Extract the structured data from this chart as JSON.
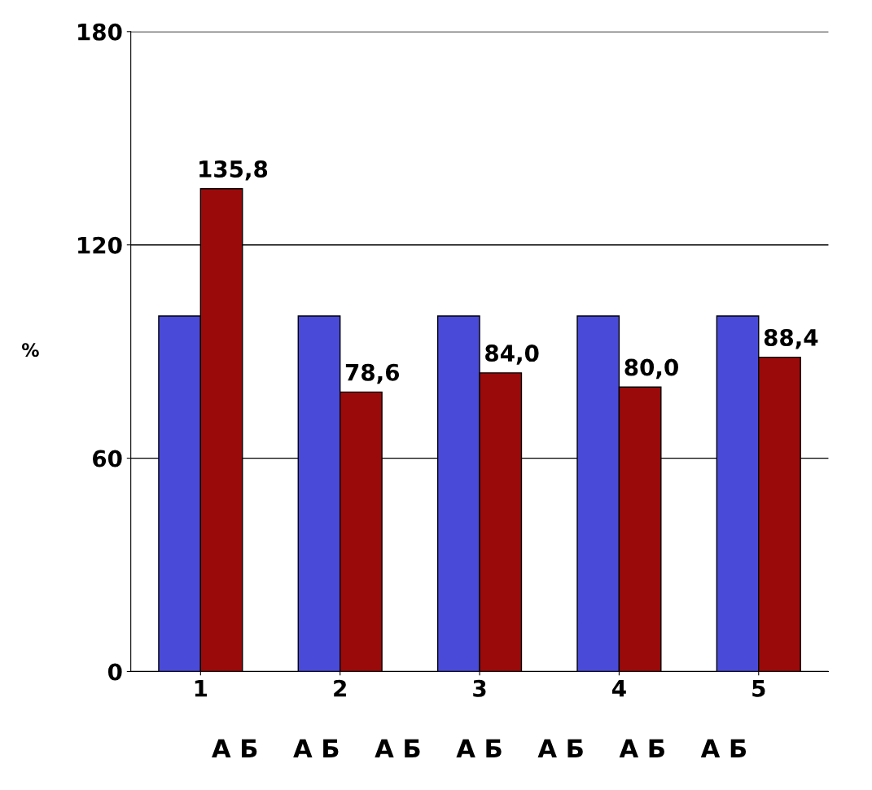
{
  "chart_data": {
    "type": "bar",
    "categories": [
      "1",
      "2",
      "3",
      "4",
      "5"
    ],
    "ylabel": "%",
    "ylim": [
      0,
      180
    ],
    "yticks": [
      0,
      60,
      120,
      180
    ],
    "grid": "y",
    "series": [
      {
        "color": "#4a4ad8",
        "values": [
          100,
          100,
          100,
          100,
          100
        ]
      },
      {
        "color": "#9a0a0a",
        "values": [
          135.8,
          78.6,
          84.0,
          80.0,
          88.4
        ],
        "value_labels": [
          "135,8",
          "78,6",
          "84,0",
          "80,0",
          "88,4"
        ]
      }
    ],
    "annotations": [
      "А Б    А Б    А Б    А Б    А Б    А Б    А Б"
    ]
  }
}
